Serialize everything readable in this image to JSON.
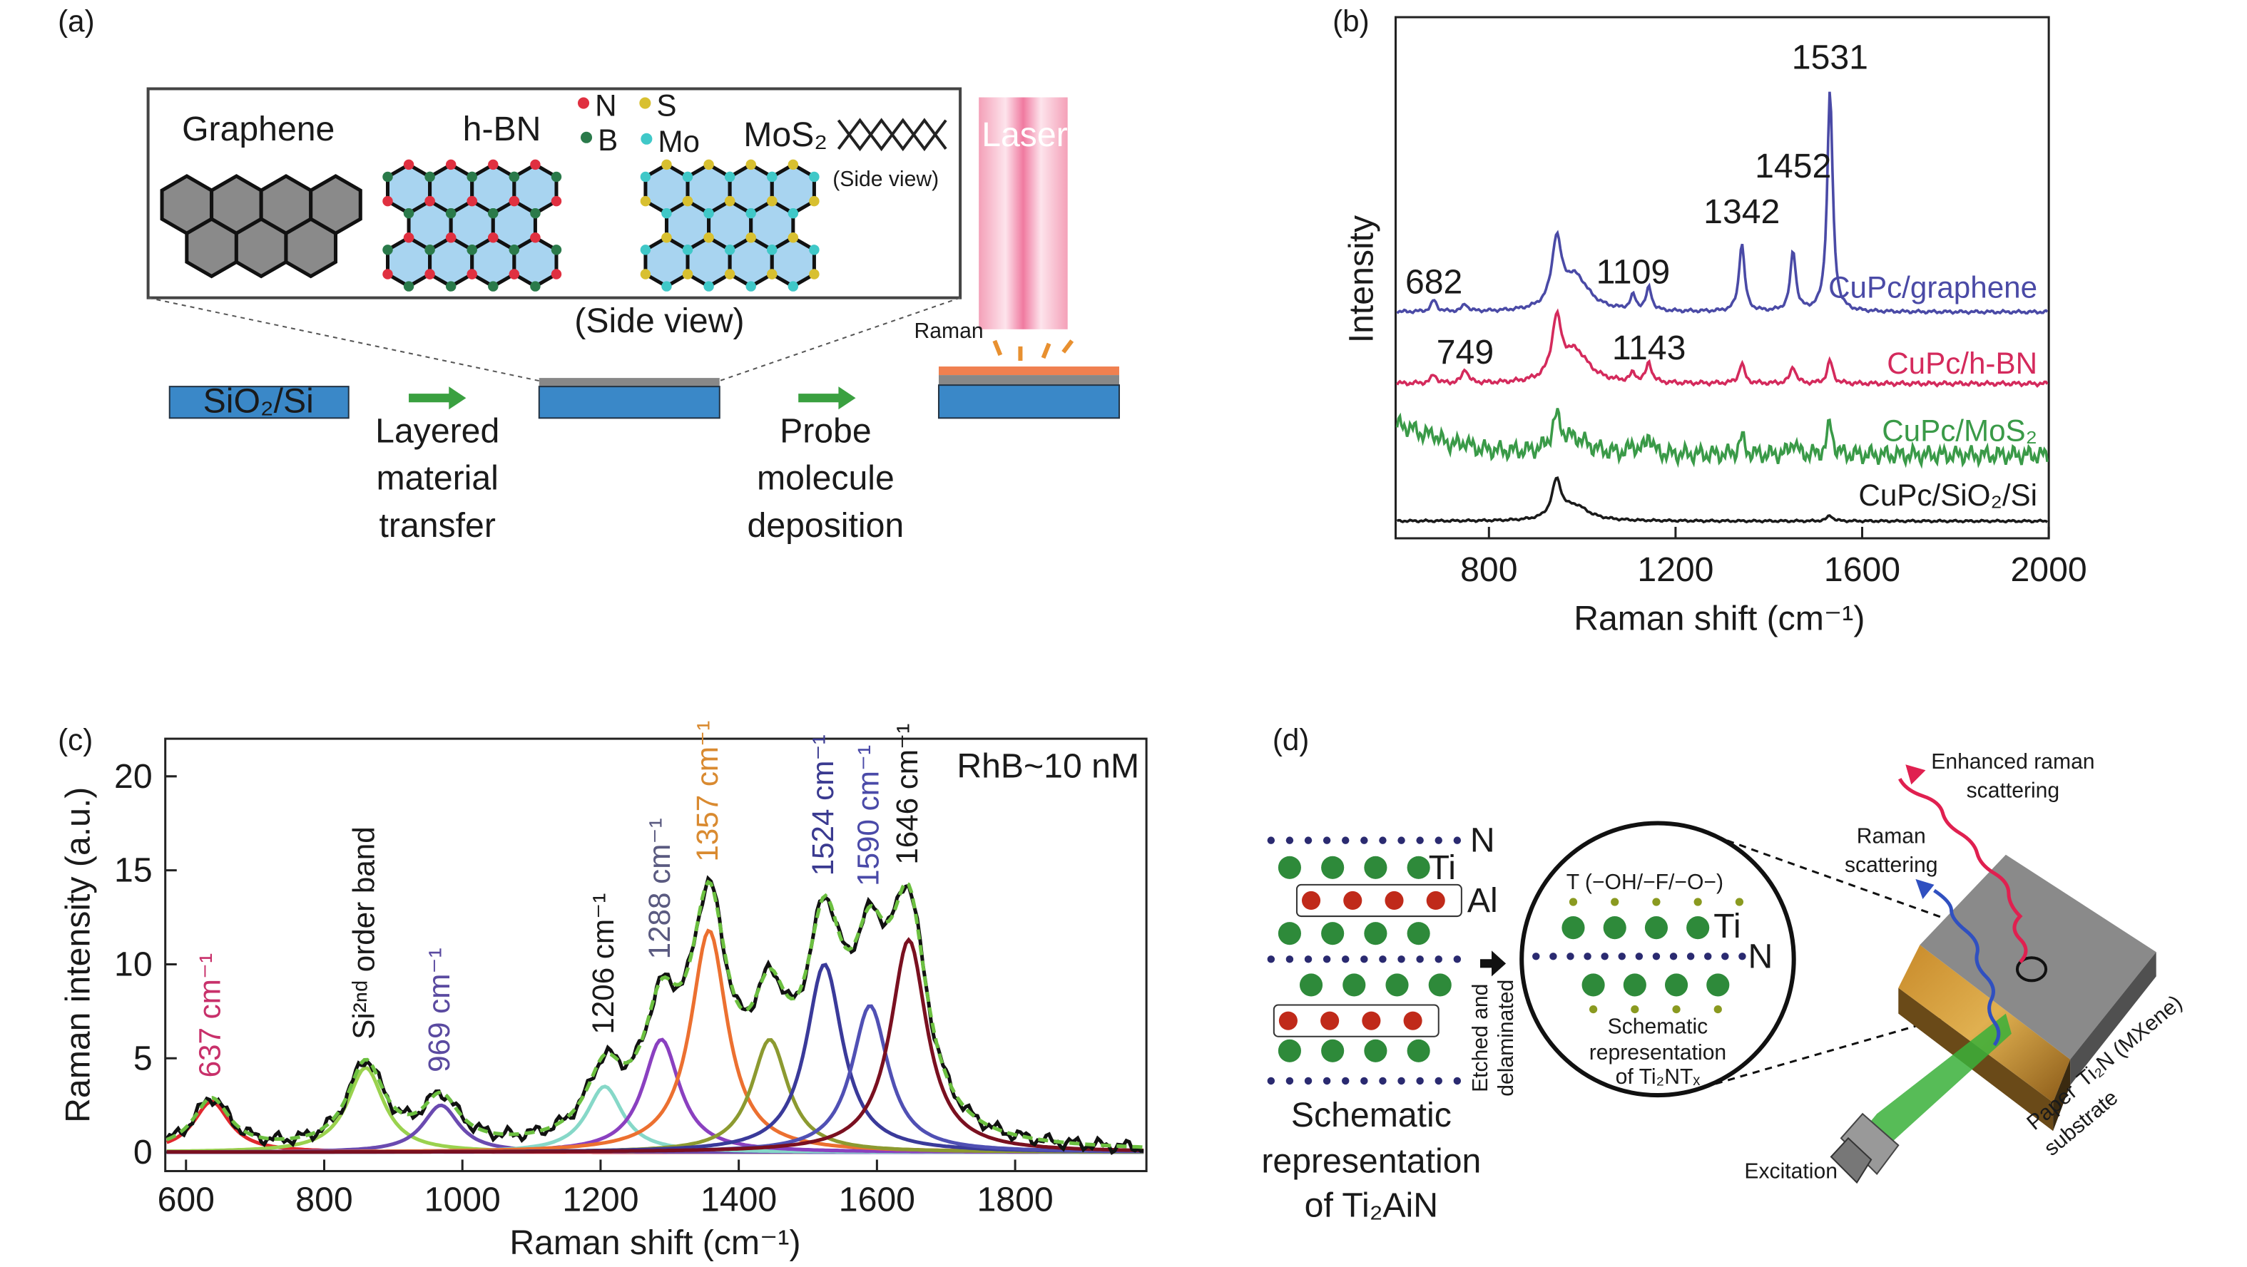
{
  "panel_a": {
    "label": "(a)",
    "graphene": "Graphene",
    "hbn": "h-BN",
    "legend": [
      "N",
      "B",
      "S",
      "Mo"
    ],
    "mos2": "MoS₂",
    "side_view_small": "(Side view)",
    "side_view": "(Side view)",
    "laser": "Laser",
    "raman": "Raman",
    "substrate": "SiO₂/Si",
    "step1": [
      "Layered",
      "material",
      "transfer"
    ],
    "step2": [
      "Probe",
      "molecule",
      "deposition"
    ]
  },
  "chart_data": [
    {
      "type": "line",
      "panel_label": "(b)",
      "xlabel": "Raman shift (cm⁻¹)",
      "ylabel": "Intensity",
      "xlim": [
        600,
        2000
      ],
      "xticks": [
        800,
        1200,
        1600,
        2000
      ],
      "series": [
        {
          "name": "CuPc/graphene",
          "color": "#4a4aa6"
        },
        {
          "name": "CuPc/h-BN",
          "color": "#d42a5c"
        },
        {
          "name": "CuPc/MoS₂",
          "color": "#3a9a48"
        },
        {
          "name": "CuPc/SiO₂/Si",
          "color": "#1a1a1a"
        }
      ],
      "annotations": [
        682,
        749,
        1109,
        1143,
        1342,
        1452,
        1531
      ]
    },
    {
      "type": "line",
      "panel_label": "(c)",
      "title": "RhB~10 nM",
      "xlabel": "Raman shift (cm⁻¹)",
      "ylabel": "Raman intensity (a.u.)",
      "xlim": [
        570,
        1990
      ],
      "ylim": [
        -1,
        22
      ],
      "xticks": [
        600,
        800,
        1000,
        1200,
        1400,
        1600,
        1800
      ],
      "yticks": [
        0,
        5,
        10,
        15,
        20
      ],
      "peaks": [
        {
          "label": "637 cm⁻¹",
          "center": 637,
          "height": 2.7,
          "color": "#e0282e",
          "label_color": "#c8306a"
        },
        {
          "label": "Si²ⁿᵈ order band",
          "center": 860,
          "height": 4.5,
          "color": "#9ad24e",
          "label_color": "#1a1a1a"
        },
        {
          "label": "969 cm⁻¹",
          "center": 969,
          "height": 2.5,
          "color": "#6a4ab0",
          "label_color": "#5a4aa0"
        },
        {
          "label": "1206 cm⁻¹",
          "center": 1206,
          "height": 3.5,
          "color": "#86d8c8",
          "label_color": "#1a1a1a"
        },
        {
          "label": "1288 cm⁻¹",
          "center": 1288,
          "height": 6,
          "color": "#8a40c0",
          "label_color": "#5a5a80"
        },
        {
          "label": "1357 cm⁻¹",
          "center": 1357,
          "height": 11.8,
          "color": "#ec7030",
          "label_color": "#d98a30"
        },
        {
          "label": null,
          "center": 1445,
          "height": 6,
          "color": "#8c9a30",
          "label_color": "#1a1a1a"
        },
        {
          "label": "1524 cm⁻¹",
          "center": 1524,
          "height": 10,
          "color": "#3a3a9a",
          "label_color": "#3a3a90"
        },
        {
          "label": "1590 cm⁻¹",
          "center": 1590,
          "height": 7.8,
          "color": "#5050b4",
          "label_color": "#4a4aa8"
        },
        {
          "label": "1646 cm⁻¹",
          "center": 1646,
          "height": 11.3,
          "color": "#7a1020",
          "label_color": "#1a1a1a"
        }
      ]
    }
  ],
  "panel_d": {
    "label": "(d)",
    "n": "N",
    "ti": "Ti",
    "al": "Al",
    "etched": [
      "Etched and",
      "delaminated"
    ],
    "left_caption": [
      "Schematic",
      "representation",
      "of Ti₂AiN"
    ],
    "terminations": "T (−OH/−F/−O−)",
    "circle_ti": "Ti",
    "circle_n": "N",
    "circle_caption": [
      "Schematic",
      "representation",
      "of Ti₂NTₓ"
    ],
    "enhanced": [
      "Enhanced raman",
      "scattering"
    ],
    "raman": [
      "Raman",
      "scattering"
    ],
    "excitation": "Excitation",
    "mxene": "Ti₂N (MXene)",
    "paper": [
      "Paper",
      "substrate"
    ]
  }
}
